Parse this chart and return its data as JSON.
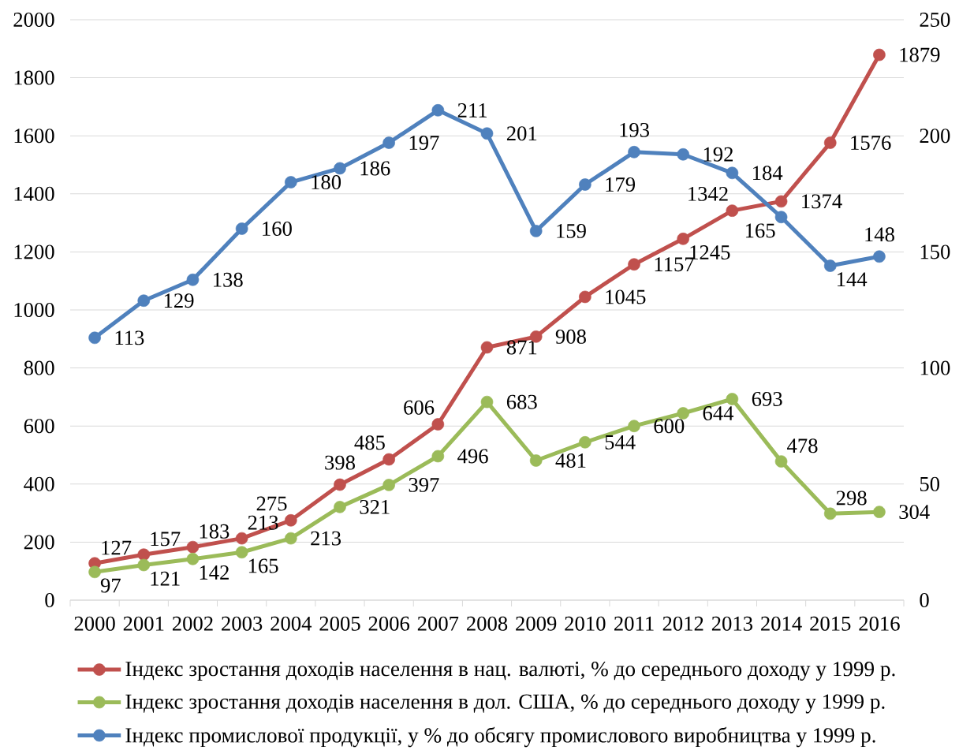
{
  "chart_data": {
    "type": "line",
    "categories": [
      "2000",
      "2001",
      "2002",
      "2003",
      "2004",
      "2005",
      "2006",
      "2007",
      "2008",
      "2009",
      "2010",
      "2011",
      "2012",
      "2013",
      "2014",
      "2015",
      "2016"
    ],
    "series": [
      {
        "name": "Індекс зростання доходів населення в нац. валюті, % до середнього доходу у 1999 р.",
        "color": "#c0504d",
        "values": [
          127,
          157,
          183,
          213,
          275,
          398,
          485,
          606,
          871,
          908,
          1045,
          1157,
          1245,
          1342,
          1374,
          1576,
          1879
        ]
      },
      {
        "name": "Індекс зростання доходів населення в дол. США, % до середнього доходу у 1999 р.",
        "color": "#9bbb59",
        "values": [
          97,
          121,
          142,
          165,
          213,
          321,
          397,
          496,
          683,
          481,
          544,
          600,
          644,
          693,
          478,
          298,
          304
        ]
      },
      {
        "name": "Індекс промислової продукції, у % до обсягу промислового виробництва у 1999 р.",
        "color": "#4f81bd",
        "axis": "y2",
        "values": [
          113,
          129,
          138,
          160,
          180,
          186,
          197,
          211,
          201,
          159,
          179,
          193,
          192,
          184,
          165,
          144,
          148
        ]
      }
    ],
    "ylim": [
      0,
      2000
    ],
    "yticks": [
      0,
      200,
      400,
      600,
      800,
      1000,
      1200,
      1400,
      1600,
      1800,
      2000
    ],
    "y2lim": [
      0,
      250
    ],
    "y2ticks": [
      0,
      50,
      100,
      150,
      200,
      250
    ],
    "grid": "y",
    "legend": "bottom",
    "marker": "circle",
    "line_style": "solid",
    "data_labels": true
  }
}
